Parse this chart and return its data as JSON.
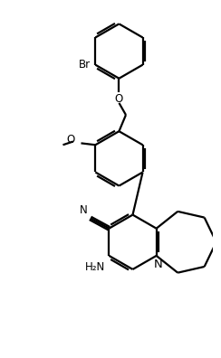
{
  "background": "#ffffff",
  "line_color": "#000000",
  "line_width": 1.6,
  "font_size": 8.5,
  "figsize": [
    2.44,
    3.96
  ],
  "dpi": 100,
  "xlim": [
    -2.5,
    3.5
  ],
  "ylim": [
    -1.0,
    9.5
  ]
}
